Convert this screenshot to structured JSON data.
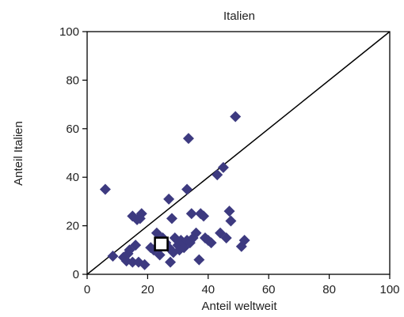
{
  "chart_data": {
    "type": "scatter",
    "title": "Italien",
    "xlabel": "Anteil weltweit",
    "ylabel": "Anteil Italien",
    "xlim": [
      0,
      100
    ],
    "ylim": [
      0,
      100
    ],
    "xticks": [
      "0",
      "20",
      "40",
      "60",
      "80",
      "100"
    ],
    "yticks": [
      "0",
      "20",
      "40",
      "60",
      "80",
      "100"
    ],
    "xtick_values": [
      0,
      20,
      40,
      60,
      80,
      100
    ],
    "ytick_values": [
      0,
      20,
      40,
      60,
      80,
      100
    ],
    "grid": false,
    "reference_line": {
      "from": [
        0,
        0
      ],
      "to": [
        100,
        100
      ]
    },
    "marker_color": "#3d3a80",
    "highlight_stroke": "#000000",
    "highlight_fill": "#ffffff",
    "series": [
      {
        "points": [
          [
            6,
            35
          ],
          [
            8.5,
            7.5
          ],
          [
            12,
            7
          ],
          [
            13,
            5.5
          ],
          [
            13.5,
            8.5
          ],
          [
            14,
            10
          ],
          [
            15,
            5
          ],
          [
            15,
            24
          ],
          [
            16,
            12
          ],
          [
            16.5,
            22.5
          ],
          [
            17,
            5
          ],
          [
            17.5,
            23
          ],
          [
            18,
            25
          ],
          [
            19,
            4
          ],
          [
            21,
            11
          ],
          [
            22,
            10
          ],
          [
            23,
            17
          ],
          [
            24,
            8
          ],
          [
            25,
            15
          ],
          [
            26,
            13
          ],
          [
            27,
            31
          ],
          [
            27,
            11
          ],
          [
            27.5,
            5
          ],
          [
            28,
            23
          ],
          [
            28.5,
            9
          ],
          [
            29,
            15
          ],
          [
            30,
            12
          ],
          [
            30.5,
            10
          ],
          [
            31,
            14
          ],
          [
            32,
            11
          ],
          [
            33,
            35
          ],
          [
            33,
            14
          ],
          [
            33.5,
            56
          ],
          [
            34,
            13
          ],
          [
            34.5,
            25
          ],
          [
            35,
            15
          ],
          [
            36,
            17
          ],
          [
            37,
            6
          ],
          [
            37.5,
            25
          ],
          [
            38.5,
            24
          ],
          [
            39,
            15
          ],
          [
            40,
            14
          ],
          [
            41,
            13
          ],
          [
            43,
            41
          ],
          [
            44,
            17
          ],
          [
            45,
            44
          ],
          [
            46,
            15
          ],
          [
            47,
            26
          ],
          [
            47.5,
            22
          ],
          [
            49,
            65
          ],
          [
            51,
            11.5
          ],
          [
            52,
            14
          ]
        ]
      },
      {
        "highlight": true,
        "points": [
          [
            24.5,
            12.5
          ]
        ]
      }
    ]
  }
}
